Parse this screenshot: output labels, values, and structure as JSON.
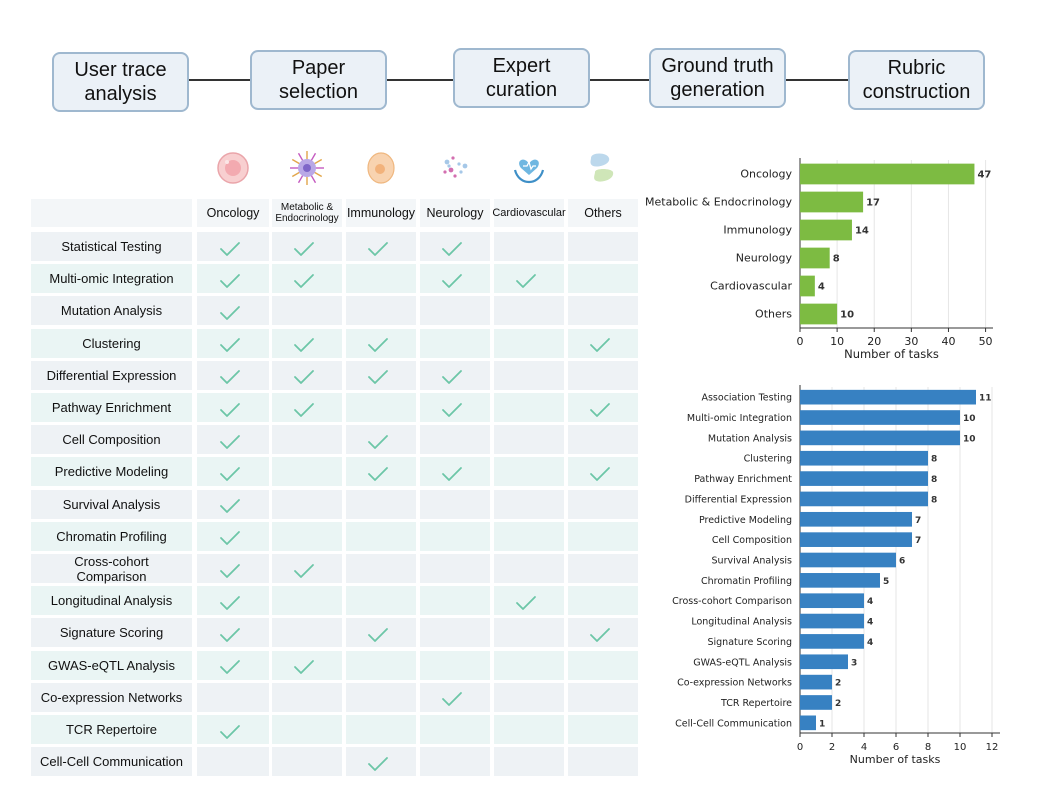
{
  "pipeline": {
    "steps": [
      {
        "label": "User trace\nanalysis"
      },
      {
        "label": "Paper\nselection"
      },
      {
        "label": "Expert\ncuration"
      },
      {
        "label": "Ground truth\ngeneration"
      },
      {
        "label": "Rubric\nconstruction"
      }
    ]
  },
  "matrix": {
    "columns": [
      {
        "label": "Oncology",
        "icon": "cancer-cell-icon"
      },
      {
        "label": "Metabolic &\nEndocrinology",
        "icon": "cell-receptor-icon"
      },
      {
        "label": "Immunology",
        "icon": "immune-cell-icon"
      },
      {
        "label": "Neurology",
        "icon": "neuron-particles-icon"
      },
      {
        "label": "Cardiovascular",
        "icon": "heart-hands-icon"
      },
      {
        "label": "Others",
        "icon": "organs-icon"
      }
    ],
    "rows": [
      {
        "label": "Statistical Testing",
        "checks": [
          1,
          1,
          1,
          1,
          0,
          0
        ]
      },
      {
        "label": "Multi-omic Integration",
        "checks": [
          1,
          1,
          0,
          1,
          1,
          0
        ]
      },
      {
        "label": "Mutation Analysis",
        "checks": [
          1,
          0,
          0,
          0,
          0,
          0
        ]
      },
      {
        "label": "Clustering",
        "checks": [
          1,
          1,
          1,
          0,
          0,
          1
        ]
      },
      {
        "label": "Differential Expression",
        "checks": [
          1,
          1,
          1,
          1,
          0,
          0
        ]
      },
      {
        "label": "Pathway Enrichment",
        "checks": [
          1,
          1,
          0,
          1,
          0,
          1
        ]
      },
      {
        "label": "Cell Composition",
        "checks": [
          1,
          0,
          1,
          0,
          0,
          0
        ]
      },
      {
        "label": "Predictive Modeling",
        "checks": [
          1,
          0,
          1,
          1,
          0,
          1
        ]
      },
      {
        "label": "Survival Analysis",
        "checks": [
          1,
          0,
          0,
          0,
          0,
          0
        ]
      },
      {
        "label": "Chromatin Profiling",
        "checks": [
          1,
          0,
          0,
          0,
          0,
          0
        ]
      },
      {
        "label": "Cross-cohort\nComparison",
        "checks": [
          1,
          1,
          0,
          0,
          0,
          0
        ]
      },
      {
        "label": "Longitudinal Analysis",
        "checks": [
          1,
          0,
          0,
          0,
          1,
          0
        ]
      },
      {
        "label": "Signature Scoring",
        "checks": [
          1,
          0,
          1,
          0,
          0,
          1
        ]
      },
      {
        "label": "GWAS-eQTL Analysis",
        "checks": [
          1,
          1,
          0,
          0,
          0,
          0
        ]
      },
      {
        "label": "Co-expression Networks",
        "checks": [
          0,
          0,
          0,
          1,
          0,
          0
        ]
      },
      {
        "label": "TCR Repertoire",
        "checks": [
          1,
          0,
          0,
          0,
          0,
          0
        ]
      },
      {
        "label": "Cell-Cell Communication",
        "checks": [
          0,
          0,
          1,
          0,
          0,
          0
        ]
      }
    ],
    "colors": {
      "row_a": "#eef2f5",
      "row_b": "#eaf5f4",
      "check": "#6cc6a7"
    }
  },
  "chart_data": [
    {
      "type": "bar",
      "orientation": "horizontal",
      "categories": [
        "Oncology",
        "Metabolic & Endocrinology",
        "Immunology",
        "Neurology",
        "Cardiovascular",
        "Others"
      ],
      "values": [
        47,
        17,
        14,
        8,
        4,
        10
      ],
      "xlabel": "Number of tasks",
      "ylabel": "",
      "xlim": [
        0,
        52
      ],
      "xticks": [
        0,
        10,
        20,
        30,
        40,
        50
      ],
      "color": "#7dbb42",
      "grid": true
    },
    {
      "type": "bar",
      "orientation": "horizontal",
      "categories": [
        "Association Testing",
        "Multi-omic Integration",
        "Mutation Analysis",
        "Clustering",
        "Pathway Enrichment",
        "Differential Expression",
        "Predictive Modeling",
        "Cell Composition",
        "Survival Analysis",
        "Chromatin Profiling",
        "Cross-cohort Comparison",
        "Longitudinal Analysis",
        "Signature Scoring",
        "GWAS-eQTL Analysis",
        "Co-expression Networks",
        "TCR Repertoire",
        "Cell-Cell Communication"
      ],
      "values": [
        11,
        10,
        10,
        8,
        8,
        8,
        7,
        7,
        6,
        5,
        4,
        4,
        4,
        3,
        2,
        2,
        1
      ],
      "xlabel": "Number of tasks",
      "ylabel": "",
      "xlim": [
        0,
        12.5
      ],
      "xticks": [
        0,
        2,
        4,
        6,
        8,
        10,
        12
      ],
      "color": "#3781c2",
      "grid": true
    }
  ]
}
